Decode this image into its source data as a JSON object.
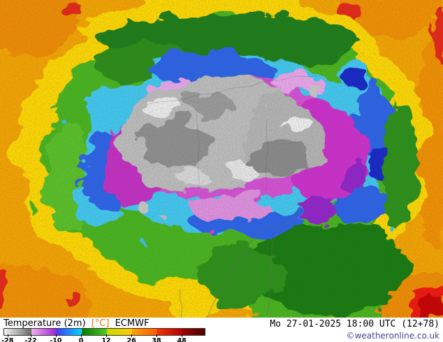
{
  "legend": {
    "title": "Temperature (2m)",
    "unit": "[°C]",
    "model": "ECMWF",
    "unit_color": "#e87800",
    "segments": [
      {
        "start": 0,
        "end": 13.6,
        "colors": [
          "#f4f4f4",
          "#686868"
        ]
      },
      {
        "start": 13.6,
        "end": 26.1,
        "colors": [
          "#efb3ef",
          "#a01ed2"
        ]
      },
      {
        "start": 26.1,
        "end": 38.7,
        "colors": [
          "#3c3cff",
          "#00d8ff"
        ]
      },
      {
        "start": 38.7,
        "end": 51.2,
        "colors": [
          "#007a00",
          "#55c81e"
        ]
      },
      {
        "start": 51.2,
        "end": 63.8,
        "colors": [
          "#c8dc00",
          "#ffc800"
        ]
      },
      {
        "start": 63.8,
        "end": 76.3,
        "colors": [
          "#ffa000",
          "#ff5a00"
        ]
      },
      {
        "start": 76.3,
        "end": 88.9,
        "colors": [
          "#f53200",
          "#b40000"
        ]
      },
      {
        "start": 88.9,
        "end": 100,
        "colors": [
          "#9b0000",
          "#500000"
        ]
      }
    ],
    "ticks": [
      {
        "label": "-28",
        "pos": 2
      },
      {
        "label": "-22",
        "pos": 13.6
      },
      {
        "label": "-10",
        "pos": 26.1
      },
      {
        "label": "0",
        "pos": 38.7
      },
      {
        "label": "12",
        "pos": 51.2
      },
      {
        "label": "26",
        "pos": 63.8
      },
      {
        "label": "38",
        "pos": 76.3
      },
      {
        "label": "48",
        "pos": 88.9
      }
    ]
  },
  "footer": {
    "datetime": "Mo 27-01-2025 18:00 UTC (12+78)",
    "copyright": "©weatheronline.co.uk",
    "copyright_color": "#44449a"
  },
  "map": {
    "description": "ECMWF 2m temperature field, polar view centered on Siberia/Arctic; gray core below -28°C surrounded by magenta, blue/cyan, green, yellow and orange rings with red hot spots at the edges"
  }
}
